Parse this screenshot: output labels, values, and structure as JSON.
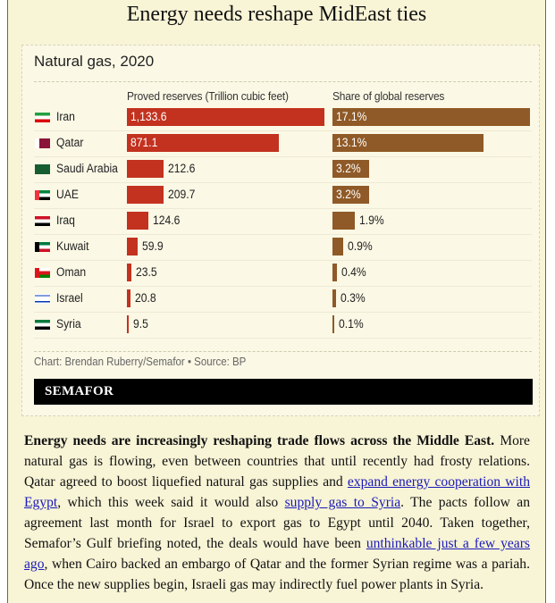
{
  "headline": "Energy needs reshape MidEast ties",
  "chart_data": {
    "type": "bar",
    "title": "Natural gas, 2020",
    "series": [
      {
        "name": "Proved reserves (Trillion cubic feet)",
        "max": 1133.6,
        "values": [
          1133.6,
          871.1,
          212.6,
          209.7,
          124.6,
          59.9,
          23.5,
          20.8,
          9.5
        ],
        "labels": [
          "1,133.6",
          "871.1",
          "212.6",
          "209.7",
          "124.6",
          "59.9",
          "23.5",
          "20.8",
          "9.5"
        ],
        "color": "#c2321f"
      },
      {
        "name": "Share of global reserves",
        "max": 17.1,
        "values": [
          17.1,
          13.1,
          3.2,
          3.2,
          1.9,
          0.9,
          0.4,
          0.3,
          0.1
        ],
        "labels": [
          "17.1%",
          "13.1%",
          "3.2%",
          "3.2%",
          "1.9%",
          "0.9%",
          "0.4%",
          "0.3%",
          "0.1%"
        ],
        "color": "#8f5a27"
      }
    ],
    "categories": [
      "Iran",
      "Qatar",
      "Saudi Arabia",
      "UAE",
      "Iraq",
      "Kuwait",
      "Oman",
      "Israel",
      "Syria"
    ],
    "flags": [
      "flag-iran",
      "flag-qatar",
      "flag-saudi-arabia",
      "flag-uae",
      "flag-iraq",
      "flag-kuwait",
      "flag-oman",
      "flag-israel",
      "flag-syria"
    ],
    "source": "Chart: Brendan Ruberry/Semafor • Source: BP"
  },
  "brand": "SEMAFOR",
  "article": {
    "lead": "Energy needs are increasingly reshaping trade flows across the Middle East.",
    "t1": " More natural gas is flowing, even between countries that until recently had frosty relations. Qatar agreed to boost liquefied natural gas supplies and ",
    "link1": "expand energy cooperation with Egypt",
    "t2": ", which this week said it would also ",
    "link2": "supply gas to Syria",
    "t3": ". The pacts follow an agreement last month for Israel to export gas to Egypt until 2040. Taken together, Semafor’s Gulf briefing noted, the deals would have been ",
    "link3": "unthinkable just a few years ago",
    "t4": ", when Cairo backed an embargo of Qatar and the former Syrian regime was a pariah. Once the new supplies begin, Israeli gas may indirectly fuel power plants in Syria."
  }
}
